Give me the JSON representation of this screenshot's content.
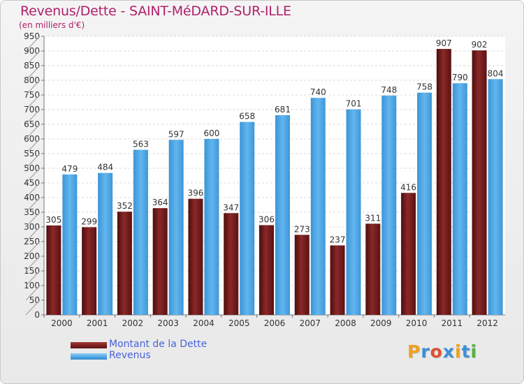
{
  "header": {
    "title": "Revenus/Dette - SAINT-MéDARD-SUR-ILLE",
    "subtitle": "(en milliers d'€)"
  },
  "legend": {
    "items": [
      {
        "label": "Montant de la Dette",
        "color": "#7a1f1f"
      },
      {
        "label": "Revenus",
        "color": "#4da6e4"
      }
    ]
  },
  "logo": {
    "letters": [
      "P",
      "r",
      "o",
      "x",
      "i",
      "t",
      "i"
    ],
    "colors": [
      "#f0a020",
      "#3c8fd8",
      "#e05030",
      "#3c8fd8",
      "#f0a020",
      "#3c8fd8",
      "#5ab040"
    ]
  },
  "chart_data": {
    "type": "bar",
    "title": "Revenus/Dette - SAINT-MéDARD-SUR-ILLE",
    "subtitle": "(en milliers d'€)",
    "xlabel": "",
    "ylabel": "",
    "ylim": [
      0,
      950
    ],
    "yticks": [
      0,
      50,
      100,
      150,
      200,
      250,
      300,
      350,
      400,
      450,
      500,
      550,
      600,
      650,
      700,
      750,
      800,
      850,
      900,
      950
    ],
    "grid": true,
    "legend_position": "bottom-left",
    "categories": [
      "2000",
      "2001",
      "2002",
      "2003",
      "2004",
      "2005",
      "2006",
      "2007",
      "2008",
      "2009",
      "2010",
      "2011",
      "2012"
    ],
    "series": [
      {
        "name": "Montant de la Dette",
        "color": "#7a1f1f",
        "values": [
          305,
          299,
          352,
          364,
          396,
          347,
          306,
          273,
          237,
          311,
          416,
          907,
          902
        ]
      },
      {
        "name": "Revenus",
        "color": "#4da6e4",
        "values": [
          479,
          484,
          563,
          597,
          600,
          658,
          681,
          740,
          701,
          748,
          758,
          790,
          804
        ]
      }
    ]
  }
}
